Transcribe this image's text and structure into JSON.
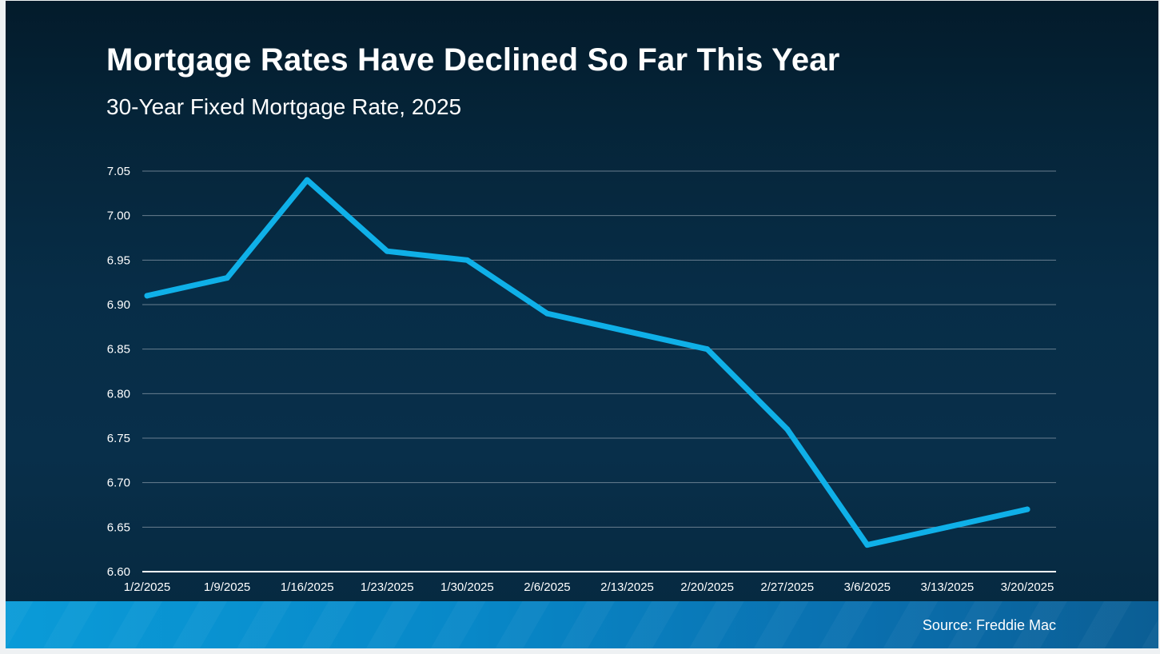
{
  "slide": {
    "title": "Mortgage Rates Have Declined So Far This Year",
    "subtitle": "30-Year Fixed Mortgage Rate, 2025",
    "source": "Source: Freddie Mac"
  },
  "colors": {
    "line": "#0fb0e8",
    "grid": "#8a9aa8",
    "text": "#ffffff"
  },
  "chart_data": {
    "type": "line",
    "title": "30-Year Fixed Mortgage Rate, 2025",
    "xlabel": "",
    "ylabel": "",
    "categories": [
      "1/2/2025",
      "1/9/2025",
      "1/16/2025",
      "1/23/2025",
      "1/30/2025",
      "2/6/2025",
      "2/13/2025",
      "2/20/2025",
      "2/27/2025",
      "3/6/2025",
      "3/13/2025",
      "3/20/2025"
    ],
    "series": [
      {
        "name": "30-Year Fixed Mortgage Rate",
        "values": [
          6.91,
          6.93,
          7.04,
          6.96,
          6.95,
          6.89,
          6.87,
          6.85,
          6.76,
          6.63,
          6.65,
          6.67
        ]
      }
    ],
    "ylim": [
      6.6,
      7.05
    ],
    "yticks": [
      "6.60",
      "6.65",
      "6.70",
      "6.75",
      "6.80",
      "6.85",
      "6.90",
      "6.95",
      "7.00",
      "7.05"
    ],
    "grid": true,
    "legend": "none"
  }
}
